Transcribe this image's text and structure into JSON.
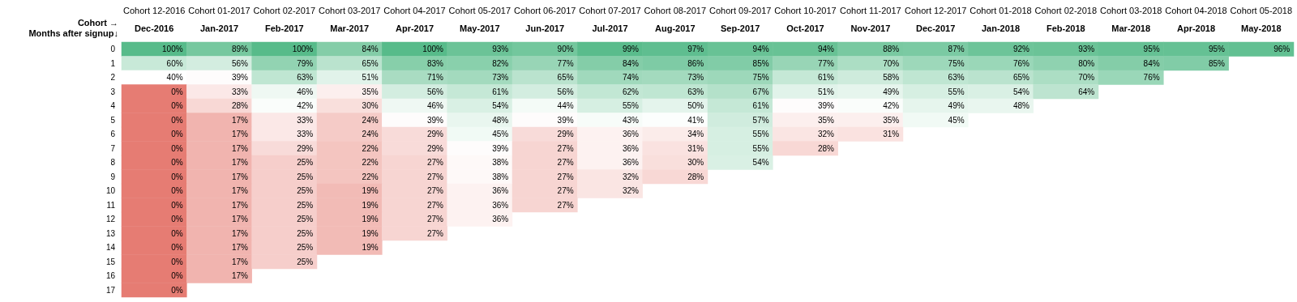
{
  "chart_data": {
    "type": "heatmap",
    "xlabel": "Cohort →",
    "ylabel": "Months after signup↓",
    "categories": [
      "Cohort 12-2016",
      "Cohort 01-2017",
      "Cohort 02-2017",
      "Cohort 03-2017",
      "Cohort 04-2017",
      "Cohort 05-2017",
      "Cohort 06-2017",
      "Cohort 07-2017",
      "Cohort 08-2017",
      "Cohort 09-2017",
      "Cohort 10-2017",
      "Cohort 11-2017",
      "Cohort 12-2017",
      "Cohort 01-2018",
      "Cohort 02-2018",
      "Cohort 03-2018",
      "Cohort 04-2018",
      "Cohort 05-2018"
    ],
    "y_categories": [
      "0",
      "1",
      "2",
      "3",
      "4",
      "5",
      "6",
      "7",
      "8",
      "9",
      "10",
      "11",
      "12",
      "13",
      "14",
      "15",
      "16",
      "17"
    ],
    "annotations": [
      "Dec-2016",
      "Jan-2017",
      "Feb-2017",
      "Mar-2017",
      "Apr-2017",
      "May-2017",
      "Jun-2017",
      "Jul-2017",
      "Aug-2017",
      "Sep-2017",
      "Oct-2017",
      "Nov-2017",
      "Dec-2017",
      "Jan-2018",
      "Feb-2018",
      "Mar-2018",
      "Apr-2018",
      "May-2018"
    ],
    "cells": [
      [
        100,
        89,
        100,
        84,
        100,
        93,
        90,
        99,
        97,
        94,
        94,
        88,
        87,
        92,
        93,
        95,
        95,
        96
      ],
      [
        60,
        56,
        79,
        65,
        83,
        82,
        77,
        84,
        86,
        85,
        77,
        70,
        75,
        76,
        80,
        84,
        85,
        null
      ],
      [
        40,
        39,
        63,
        51,
        71,
        73,
        65,
        74,
        73,
        75,
        61,
        58,
        63,
        65,
        70,
        76,
        null,
        null
      ],
      [
        0,
        33,
        46,
        35,
        56,
        61,
        56,
        62,
        63,
        67,
        51,
        49,
        55,
        54,
        64,
        null,
        null,
        null
      ],
      [
        0,
        28,
        42,
        30,
        46,
        54,
        44,
        55,
        50,
        61,
        39,
        42,
        49,
        48,
        null,
        null,
        null,
        null
      ],
      [
        0,
        17,
        33,
        24,
        39,
        48,
        39,
        43,
        41,
        57,
        35,
        35,
        45,
        null,
        null,
        null,
        null,
        null
      ],
      [
        0,
        17,
        33,
        24,
        29,
        45,
        29,
        36,
        34,
        55,
        32,
        31,
        null,
        null,
        null,
        null,
        null,
        null
      ],
      [
        0,
        17,
        29,
        22,
        29,
        39,
        27,
        36,
        31,
        55,
        28,
        null,
        null,
        null,
        null,
        null,
        null,
        null
      ],
      [
        0,
        17,
        25,
        22,
        27,
        38,
        27,
        36,
        30,
        54,
        null,
        null,
        null,
        null,
        null,
        null,
        null,
        null
      ],
      [
        0,
        17,
        25,
        22,
        27,
        38,
        27,
        32,
        28,
        null,
        null,
        null,
        null,
        null,
        null,
        null,
        null,
        null
      ],
      [
        0,
        17,
        25,
        19,
        27,
        36,
        27,
        32,
        null,
        null,
        null,
        null,
        null,
        null,
        null,
        null,
        null,
        null
      ],
      [
        0,
        17,
        25,
        19,
        27,
        36,
        27,
        null,
        null,
        null,
        null,
        null,
        null,
        null,
        null,
        null,
        null,
        null
      ],
      [
        0,
        17,
        25,
        19,
        27,
        36,
        null,
        null,
        null,
        null,
        null,
        null,
        null,
        null,
        null,
        null,
        null,
        null
      ],
      [
        0,
        17,
        25,
        19,
        27,
        null,
        null,
        null,
        null,
        null,
        null,
        null,
        null,
        null,
        null,
        null,
        null,
        null
      ],
      [
        0,
        17,
        25,
        19,
        null,
        null,
        null,
        null,
        null,
        null,
        null,
        null,
        null,
        null,
        null,
        null,
        null,
        null
      ],
      [
        0,
        17,
        25,
        null,
        null,
        null,
        null,
        null,
        null,
        null,
        null,
        null,
        null,
        null,
        null,
        null,
        null,
        null
      ],
      [
        0,
        17,
        null,
        null,
        null,
        null,
        null,
        null,
        null,
        null,
        null,
        null,
        null,
        null,
        null,
        null,
        null,
        null
      ],
      [
        0,
        null,
        null,
        null,
        null,
        null,
        null,
        null,
        null,
        null,
        null,
        null,
        null,
        null,
        null,
        null,
        null,
        null
      ]
    ],
    "cell_labels": [
      [
        "100%",
        "89%",
        "100%",
        "84%",
        "100%",
        "93%",
        "90%",
        "99%",
        "97%",
        "94%",
        "94%",
        "88%",
        "87%",
        "92%",
        "93%",
        "95%",
        "95%",
        "96%"
      ],
      [
        "60%",
        "56%",
        "79%",
        "65%",
        "83%",
        "82%",
        "77%",
        "84%",
        "86%",
        "85%",
        "77%",
        "70%",
        "75%",
        "76%",
        "80%",
        "84%",
        "85%",
        null
      ],
      [
        "40%",
        "39%",
        "63%",
        "51%",
        "71%",
        "73%",
        "65%",
        "74%",
        "73%",
        "75%",
        "61%",
        "58%",
        "63%",
        "65%",
        "70%",
        "76%",
        null,
        null
      ],
      [
        "0%",
        "33%",
        "46%",
        "35%",
        "56%",
        "61%",
        "56%",
        "62%",
        "63%",
        "67%",
        "51%",
        "49%",
        "55%",
        "54%",
        "64%",
        null,
        null,
        null
      ],
      [
        "0%",
        "28%",
        "42%",
        "30%",
        "46%",
        "54%",
        "44%",
        "55%",
        "50%",
        "61%",
        "39%",
        "42%",
        "49%",
        "48%",
        null,
        null,
        null,
        null
      ],
      [
        "0%",
        "17%",
        "33%",
        "24%",
        "39%",
        "48%",
        "39%",
        "43%",
        "41%",
        "57%",
        "35%",
        "35%",
        "45%",
        null,
        null,
        null,
        null,
        null
      ],
      [
        "0%",
        "17%",
        "33%",
        "24%",
        "29%",
        "45%",
        "29%",
        "36%",
        "34%",
        "55%",
        "32%",
        "31%",
        null,
        null,
        null,
        null,
        null,
        null
      ],
      [
        "0%",
        "17%",
        "29%",
        "22%",
        "29%",
        "39%",
        "27%",
        "36%",
        "31%",
        "55%",
        "28%",
        null,
        null,
        null,
        null,
        null,
        null,
        null
      ],
      [
        "0%",
        "17%",
        "25%",
        "22%",
        "27%",
        "38%",
        "27%",
        "36%",
        "30%",
        "54%",
        null,
        null,
        null,
        null,
        null,
        null,
        null,
        null
      ],
      [
        "0%",
        "17%",
        "25%",
        "22%",
        "27%",
        "38%",
        "27%",
        "32%",
        "28%",
        null,
        null,
        null,
        null,
        null,
        null,
        null,
        null,
        null
      ],
      [
        "0%",
        "17%",
        "25%",
        "19%",
        "27%",
        "36%",
        "27%",
        "32%",
        null,
        null,
        null,
        null,
        null,
        null,
        null,
        null,
        null,
        null
      ],
      [
        "0%",
        "17%",
        "25%",
        "19%",
        "27%",
        "36%",
        "27%",
        null,
        null,
        null,
        null,
        null,
        null,
        null,
        null,
        null,
        null,
        null
      ],
      [
        "0%",
        "17%",
        "25%",
        "19%",
        "27%",
        "36%",
        null,
        null,
        null,
        null,
        null,
        null,
        null,
        null,
        null,
        null,
        null,
        null
      ],
      [
        "0%",
        "17%",
        "25%",
        "19%",
        "27%",
        null,
        null,
        null,
        null,
        null,
        null,
        null,
        null,
        null,
        null,
        null,
        null,
        null
      ],
      [
        "0%",
        "17%",
        "25%",
        "19%",
        null,
        null,
        null,
        null,
        null,
        null,
        null,
        null,
        null,
        null,
        null,
        null,
        null,
        null
      ],
      [
        "0%",
        "17%",
        "25%",
        null,
        null,
        null,
        null,
        null,
        null,
        null,
        null,
        null,
        null,
        null,
        null,
        null,
        null,
        null
      ],
      [
        "0%",
        "17%",
        null,
        null,
        null,
        null,
        null,
        null,
        null,
        null,
        null,
        null,
        null,
        null,
        null,
        null,
        null,
        null
      ],
      [
        "0%",
        null,
        null,
        null,
        null,
        null,
        null,
        null,
        null,
        null,
        null,
        null,
        null,
        null,
        null,
        null,
        null,
        null
      ]
    ]
  }
}
